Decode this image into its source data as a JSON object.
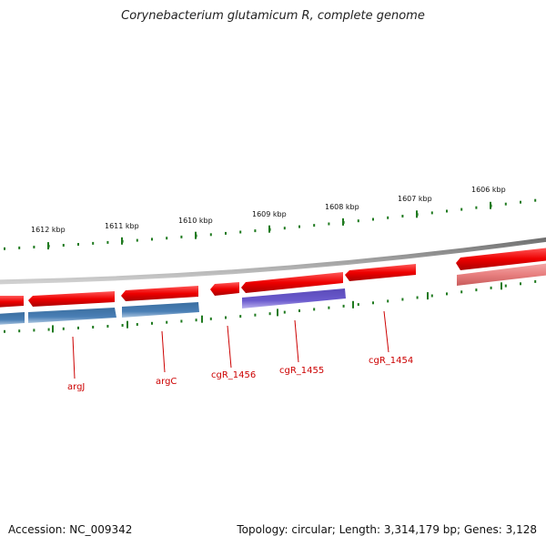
{
  "title": "Corynebacterium glutamicum R, complete genome",
  "footer": {
    "accession": "Accession: NC_009342",
    "stats": "Topology: circular; Length: 3,314,179 bp; Genes: 3,128"
  },
  "ruler": {
    "tick_labels": [
      "1612 kbp",
      "1611 kbp",
      "1610 kbp",
      "1609 kbp",
      "1608 kbp",
      "1607 kbp",
      "1606 kbp"
    ]
  },
  "genes": {
    "labels": [
      "argJ",
      "argC",
      "cgR_1456",
      "cgR_1455",
      "cgR_1454"
    ]
  },
  "colors": {
    "backbone": "#8a8a8a",
    "forward_gene": "#ee0000",
    "forward_gene_faded": "#e88080",
    "reverse_gene_blue": "#4a7fb5",
    "reverse_gene_purple": "#6a5acd",
    "tick": "#1f7a1f",
    "gene_label": "#cc0000"
  }
}
